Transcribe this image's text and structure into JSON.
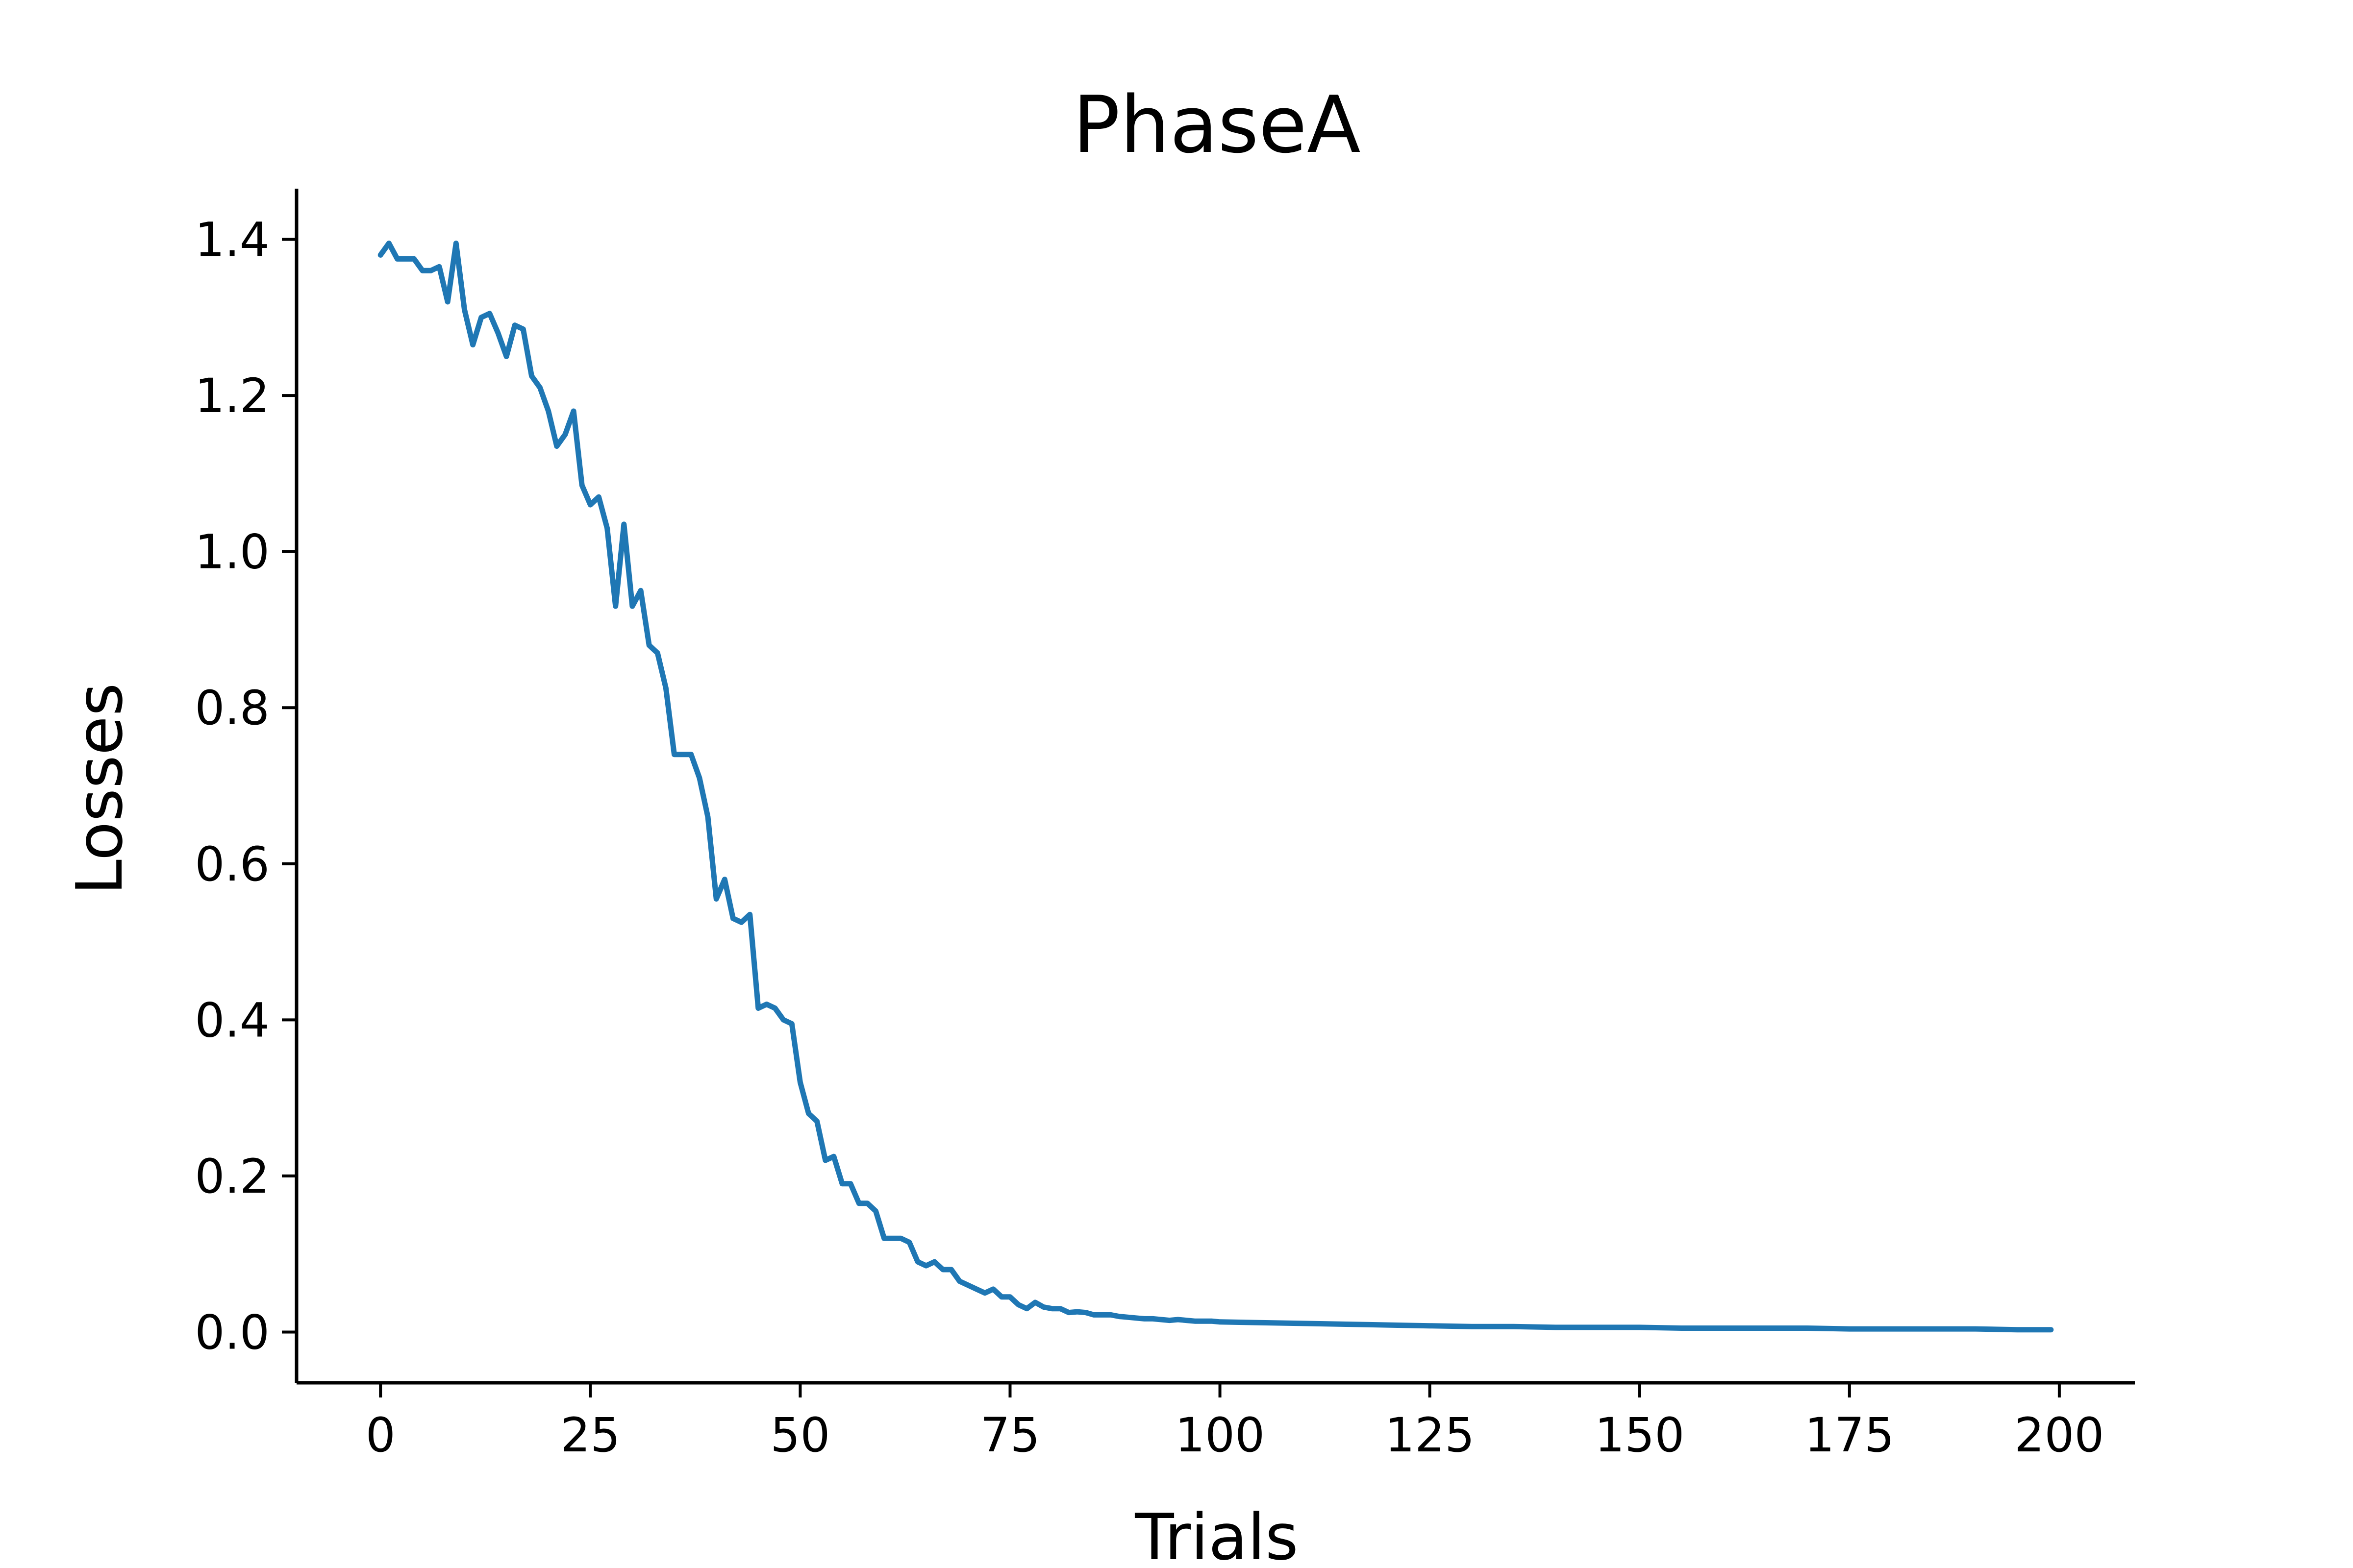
{
  "chart_data": {
    "type": "line",
    "title": "PhaseA",
    "xlabel": "Trials",
    "ylabel": "Losses",
    "xlim": [
      -10,
      209
    ],
    "ylim": [
      -0.065,
      1.465
    ],
    "xticks": [
      0,
      25,
      50,
      75,
      100,
      125,
      150,
      175,
      200
    ],
    "xtick_labels": [
      "0",
      "25",
      "50",
      "75",
      "100",
      "125",
      "150",
      "175",
      "200"
    ],
    "yticks": [
      0.0,
      0.2,
      0.4,
      0.6,
      0.8,
      1.0,
      1.2,
      1.4
    ],
    "ytick_labels": [
      "0.0",
      "0.2",
      "0.4",
      "0.6",
      "0.8",
      "1.0",
      "1.2",
      "1.4"
    ],
    "grid": false,
    "legend": "none",
    "spines": [
      "left",
      "bottom"
    ],
    "colors": {
      "series": "#1f77b4",
      "axes": "#000000",
      "background": "#ffffff"
    },
    "series": [
      {
        "x": [
          0,
          1,
          2,
          3,
          4,
          5,
          6,
          7,
          8,
          9,
          10,
          11,
          12,
          13,
          14,
          15,
          16,
          17,
          18,
          19,
          20,
          21,
          22,
          23,
          24,
          25,
          26,
          27,
          28,
          29,
          30,
          31,
          32,
          33,
          34,
          35,
          36,
          37,
          38,
          39,
          40,
          41,
          42,
          43,
          44,
          45,
          46,
          47,
          48,
          49,
          50,
          51,
          52,
          53,
          54,
          55,
          56,
          57,
          58,
          59,
          60,
          61,
          62,
          63,
          64,
          65,
          66,
          67,
          68,
          69,
          70,
          71,
          72,
          73,
          74,
          75,
          76,
          77,
          78,
          79,
          80,
          81,
          82,
          83,
          84,
          85,
          86,
          87,
          88,
          89,
          90,
          91,
          92,
          93,
          94,
          95,
          96,
          97,
          98,
          99,
          100,
          105,
          110,
          115,
          120,
          125,
          130,
          135,
          140,
          145,
          150,
          155,
          160,
          165,
          170,
          175,
          180,
          185,
          190,
          195,
          199
        ],
        "values": [
          1.38,
          1.395,
          1.375,
          1.375,
          1.375,
          1.36,
          1.36,
          1.365,
          1.32,
          1.395,
          1.31,
          1.265,
          1.3,
          1.305,
          1.28,
          1.25,
          1.29,
          1.285,
          1.225,
          1.21,
          1.18,
          1.135,
          1.15,
          1.18,
          1.085,
          1.06,
          1.07,
          1.03,
          0.93,
          1.035,
          0.93,
          0.95,
          0.88,
          0.87,
          0.825,
          0.74,
          0.74,
          0.74,
          0.71,
          0.66,
          0.555,
          0.58,
          0.53,
          0.525,
          0.535,
          0.415,
          0.42,
          0.415,
          0.4,
          0.395,
          0.32,
          0.28,
          0.27,
          0.22,
          0.225,
          0.19,
          0.19,
          0.165,
          0.165,
          0.155,
          0.12,
          0.12,
          0.12,
          0.115,
          0.09,
          0.085,
          0.09,
          0.08,
          0.08,
          0.065,
          0.06,
          0.055,
          0.05,
          0.055,
          0.045,
          0.045,
          0.035,
          0.03,
          0.038,
          0.032,
          0.03,
          0.03,
          0.025,
          0.026,
          0.025,
          0.022,
          0.022,
          0.022,
          0.02,
          0.019,
          0.018,
          0.017,
          0.017,
          0.016,
          0.015,
          0.016,
          0.015,
          0.014,
          0.014,
          0.014,
          0.013,
          0.012,
          0.011,
          0.01,
          0.009,
          0.008,
          0.007,
          0.007,
          0.006,
          0.006,
          0.006,
          0.005,
          0.005,
          0.005,
          0.005,
          0.004,
          0.004,
          0.004,
          0.004,
          0.003,
          0.003
        ]
      }
    ]
  }
}
